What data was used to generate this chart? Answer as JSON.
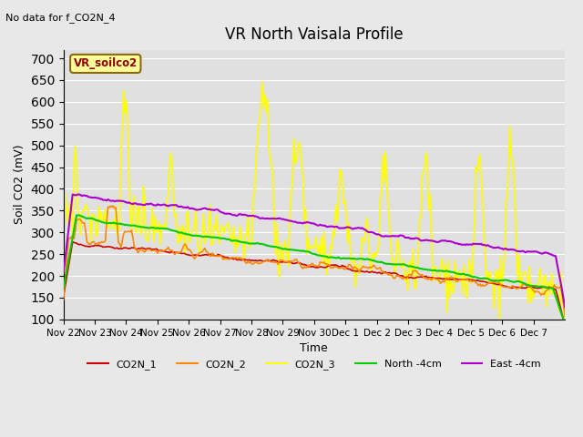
{
  "title": "VR North Vaisala Profile",
  "subtitle": "No data for f_CO2N_4",
  "xlabel": "Time",
  "ylabel": "Soil CO2 (mV)",
  "ylim": [
    100,
    720
  ],
  "yticks": [
    100,
    150,
    200,
    250,
    300,
    350,
    400,
    450,
    500,
    550,
    600,
    650,
    700
  ],
  "bg_color": "#e8e8e8",
  "plot_bg_color": "#e0e0e0",
  "legend_box_label": "VR_soilco2",
  "legend_box_color": "#ffff99",
  "legend_box_border": "#8b6914",
  "legend_box_text_color": "#8b0000",
  "series": {
    "CO2N_1": {
      "color": "#cc0000",
      "lw": 1.2
    },
    "CO2N_2": {
      "color": "#ff8800",
      "lw": 1.2
    },
    "CO2N_3": {
      "color": "#ffff00",
      "lw": 1.2
    },
    "North -4cm": {
      "color": "#00cc00",
      "lw": 1.5
    },
    "East -4cm": {
      "color": "#aa00cc",
      "lw": 1.5
    }
  },
  "x_labels": [
    "Nov 22",
    "Nov 23",
    "Nov 24",
    "Nov 25",
    "Nov 26",
    "Nov 27",
    "Nov 28",
    "Nov 29",
    "Nov 30",
    "Dec 1",
    "Dec 2",
    "Dec 3",
    "Dec 4",
    "Dec 5",
    "Dec 6",
    "Dec 7"
  ]
}
